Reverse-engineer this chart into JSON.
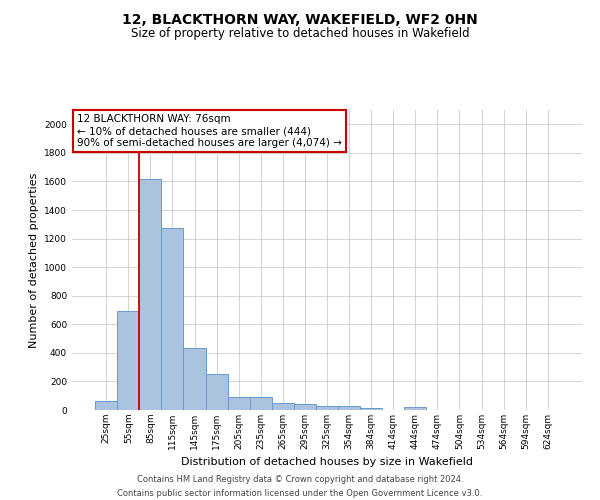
{
  "title": "12, BLACKTHORN WAY, WAKEFIELD, WF2 0HN",
  "subtitle": "Size of property relative to detached houses in Wakefield",
  "xlabel": "Distribution of detached houses by size in Wakefield",
  "ylabel": "Number of detached properties",
  "footer_line1": "Contains HM Land Registry data © Crown copyright and database right 2024.",
  "footer_line2": "Contains public sector information licensed under the Open Government Licence v3.0.",
  "categories": [
    "25sqm",
    "55sqm",
    "85sqm",
    "115sqm",
    "145sqm",
    "175sqm",
    "205sqm",
    "235sqm",
    "265sqm",
    "295sqm",
    "325sqm",
    "354sqm",
    "384sqm",
    "414sqm",
    "444sqm",
    "474sqm",
    "504sqm",
    "534sqm",
    "564sqm",
    "594sqm",
    "624sqm"
  ],
  "values": [
    65,
    695,
    1620,
    1275,
    435,
    255,
    90,
    90,
    50,
    42,
    30,
    28,
    14,
    0,
    18,
    0,
    0,
    0,
    0,
    0,
    0
  ],
  "bar_color": "#aac4df",
  "bar_edge_color": "#6699cc",
  "vline_x_index": 1.5,
  "annotation_text_line1": "12 BLACKTHORN WAY: 76sqm",
  "annotation_text_line2": "← 10% of detached houses are smaller (444)",
  "annotation_text_line3": "90% of semi-detached houses are larger (4,074) →",
  "annotation_box_facecolor": "#ffffff",
  "annotation_box_edgecolor": "#cc0000",
  "vline_color": "#cc0000",
  "ylim": [
    0,
    2100
  ],
  "yticks": [
    0,
    200,
    400,
    600,
    800,
    1000,
    1200,
    1400,
    1600,
    1800,
    2000
  ],
  "background_color": "#ffffff",
  "grid_color": "#cccccc",
  "title_fontsize": 10,
  "subtitle_fontsize": 8.5,
  "ylabel_fontsize": 8,
  "xlabel_fontsize": 8,
  "tick_fontsize": 6.5,
  "annotation_fontsize": 7.5,
  "footer_fontsize": 6
}
